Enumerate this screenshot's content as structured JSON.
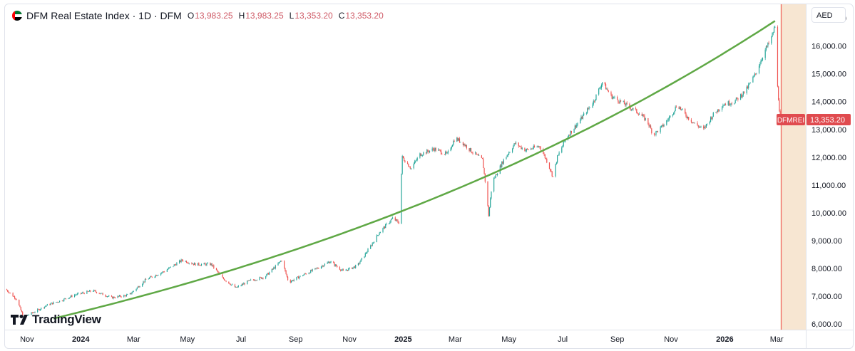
{
  "legend": {
    "title": "DFM Real Estate Index · 1D · DFM",
    "open_key": "O",
    "open": "13,983.25",
    "high_key": "H",
    "high": "13,983.25",
    "low_key": "L",
    "low": "13,353.20",
    "close_key": "C",
    "close": "13,353.20"
  },
  "currency": "AED",
  "brand": "TradingView",
  "colors": {
    "up": "#26a69a",
    "down": "#ef5350",
    "trend": "#5fa845",
    "price_label": "#e04b4f",
    "future_zone": "#f7e6d2"
  },
  "last_price": {
    "symbol": "DFMREI",
    "value": "13,353.20",
    "numeric": 13353.2
  },
  "chart_data": {
    "type": "candlestick",
    "title": "DFM Real Estate Index · 1D · DFM",
    "ylim": [
      5800,
      17500
    ],
    "y_ticks": [
      17000,
      16000,
      15000,
      14000,
      13000,
      12000,
      11000,
      10000,
      9000,
      8000,
      7000,
      6000
    ],
    "y_tick_labels": [
      "17,000.00",
      "16,000.00",
      "15,000.00",
      "14,000.00",
      "13,000.00",
      "12,000.00",
      "11,000.00",
      "10,000.00",
      "9,000.00",
      "8,000.00",
      "7,000.00",
      "6,000.00"
    ],
    "x_ticks": [
      "Nov",
      "2024",
      "Mar",
      "May",
      "Jul",
      "Sep",
      "Nov",
      "2025",
      "Mar",
      "May",
      "Jul",
      "Sep",
      "Nov",
      "2026",
      "Mar"
    ],
    "x_tick_dates": [
      "2023-11-01",
      "2024-01-01",
      "2024-03-01",
      "2024-05-01",
      "2024-07-01",
      "2024-09-01",
      "2024-11-01",
      "2025-01-01",
      "2025-03-01",
      "2025-05-01",
      "2025-07-01",
      "2025-09-01",
      "2025-11-01",
      "2026-01-01",
      "2026-03-01"
    ],
    "x_range": [
      "2023-10-07",
      "2026-04-03"
    ],
    "price_path": [
      [
        "2023-10-08",
        7250
      ],
      [
        "2023-10-20",
        6900
      ],
      [
        "2023-10-28",
        6250
      ],
      [
        "2023-11-10",
        6450
      ],
      [
        "2023-11-25",
        6700
      ],
      [
        "2023-12-10",
        6850
      ],
      [
        "2023-12-25",
        7050
      ],
      [
        "2024-01-15",
        7200
      ],
      [
        "2024-02-05",
        6950
      ],
      [
        "2024-02-25",
        7050
      ],
      [
        "2024-03-15",
        7600
      ],
      [
        "2024-04-05",
        7900
      ],
      [
        "2024-04-25",
        8300
      ],
      [
        "2024-05-10",
        8150
      ],
      [
        "2024-05-28",
        8150
      ],
      [
        "2024-06-10",
        7650
      ],
      [
        "2024-06-25",
        7300
      ],
      [
        "2024-07-10",
        7550
      ],
      [
        "2024-07-28",
        7700
      ],
      [
        "2024-08-10",
        8100
      ],
      [
        "2024-08-16",
        8300
      ],
      [
        "2024-08-24",
        7500
      ],
      [
        "2024-09-05",
        7700
      ],
      [
        "2024-09-25",
        8000
      ],
      [
        "2024-10-10",
        8250
      ],
      [
        "2024-10-25",
        7900
      ],
      [
        "2024-11-10",
        8100
      ],
      [
        "2024-11-25",
        8800
      ],
      [
        "2024-12-05",
        9300
      ],
      [
        "2024-12-20",
        9800
      ],
      [
        "2024-12-27",
        9650
      ],
      [
        "2024-12-31",
        12000
      ],
      [
        "2025-01-10",
        11600
      ],
      [
        "2025-01-20",
        12100
      ],
      [
        "2025-02-05",
        12300
      ],
      [
        "2025-02-20",
        12100
      ],
      [
        "2025-03-01",
        12700
      ],
      [
        "2025-03-10",
        12500
      ],
      [
        "2025-03-20",
        12200
      ],
      [
        "2025-04-01",
        11900
      ],
      [
        "2025-04-05",
        10900
      ],
      [
        "2025-04-08",
        9900
      ],
      [
        "2025-04-12",
        11100
      ],
      [
        "2025-04-25",
        11900
      ],
      [
        "2025-05-08",
        12500
      ],
      [
        "2025-05-20",
        12250
      ],
      [
        "2025-06-05",
        12400
      ],
      [
        "2025-06-14",
        11800
      ],
      [
        "2025-06-20",
        11300
      ],
      [
        "2025-06-25",
        12000
      ],
      [
        "2025-07-05",
        12700
      ],
      [
        "2025-07-20",
        13300
      ],
      [
        "2025-08-05",
        14000
      ],
      [
        "2025-08-15",
        14700
      ],
      [
        "2025-08-25",
        14200
      ],
      [
        "2025-09-10",
        13900
      ],
      [
        "2025-09-25",
        13600
      ],
      [
        "2025-10-05",
        13300
      ],
      [
        "2025-10-12",
        12800
      ],
      [
        "2025-10-22",
        13100
      ],
      [
        "2025-11-01",
        13500
      ],
      [
        "2025-11-08",
        13900
      ],
      [
        "2025-11-18",
        13500
      ],
      [
        "2025-11-28",
        13200
      ],
      [
        "2025-12-08",
        13000
      ],
      [
        "2025-12-18",
        13500
      ],
      [
        "2025-12-30",
        13900
      ],
      [
        "2026-01-12",
        14000
      ],
      [
        "2026-01-25",
        14400
      ],
      [
        "2026-02-05",
        15000
      ],
      [
        "2026-02-15",
        15800
      ],
      [
        "2026-02-22",
        16200
      ],
      [
        "2026-02-27",
        16700
      ],
      [
        "2026-03-02",
        14500
      ],
      [
        "2026-03-05",
        13353
      ]
    ],
    "trendline": {
      "from": {
        "date": "2023-12-01",
        "value": 6200
      },
      "to": {
        "date": "2026-02-27",
        "value": 16900
      },
      "shape": "exponential"
    },
    "future_zone_start": "2026-03-05",
    "last_close": 13353.2
  }
}
